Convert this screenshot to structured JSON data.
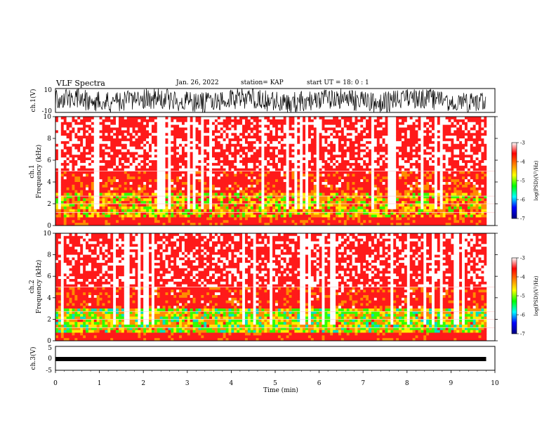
{
  "header": {
    "title": "VLF Spectra",
    "date": "Jan. 26, 2022",
    "station": "station= KAP",
    "start_ut": "start  UT =   18: 0  : 1"
  },
  "chart_data": [
    {
      "type": "line",
      "panel": "ch1-waveform",
      "ylabel": "ch.1(V)",
      "ylim": [
        -10,
        10
      ],
      "yticks": [
        "10",
        "-10"
      ],
      "xlim": [
        0,
        10
      ],
      "note_color": "#000000"
    },
    {
      "type": "heatmap",
      "panel": "ch1-spectrogram",
      "ylabel_line1": "ch.1",
      "ylabel_line2": "Frequency  (kHz)",
      "ylim": [
        0,
        10
      ],
      "yticks": [
        "0",
        "2",
        "4",
        "6",
        "8",
        "10"
      ],
      "xlim": [
        0,
        10
      ],
      "colorbar": {
        "label": "log(PSD)(V²/Hz)",
        "range": [
          -7,
          -3
        ],
        "ticks": [
          "-3",
          "-4",
          "-5",
          "-6",
          "-7"
        ],
        "colors": [
          "#000080",
          "#0000ff",
          "#00ffff",
          "#00ff00",
          "#ffff00",
          "#ff8000",
          "#ff0000",
          "#ffffff"
        ]
      }
    },
    {
      "type": "heatmap",
      "panel": "ch2-spectrogram",
      "ylabel_line1": "ch.2",
      "ylabel_line2": "Frequency  (kHz)",
      "ylim": [
        0,
        10
      ],
      "yticks": [
        "0",
        "2",
        "4",
        "6",
        "8",
        "10"
      ],
      "xlim": [
        0,
        10
      ],
      "colorbar": {
        "label": "log(PSD)(V²/Hz)",
        "range": [
          -7,
          -3
        ],
        "ticks": [
          "-3",
          "-4",
          "-5",
          "-6",
          "-7"
        ],
        "colors": [
          "#000080",
          "#0000ff",
          "#00ffff",
          "#00ff00",
          "#ffff00",
          "#ff8000",
          "#ff0000",
          "#ffffff"
        ]
      }
    },
    {
      "type": "line",
      "panel": "ch3-waveform",
      "ylabel": "ch.3(V)",
      "ylim": [
        -5,
        5
      ],
      "yticks": [
        "5",
        "0",
        "-5"
      ],
      "xlim": [
        0,
        10
      ],
      "xlabel": "Time  (min)",
      "xticks": [
        "0",
        "1",
        "2",
        "3",
        "4",
        "5",
        "6",
        "7",
        "8",
        "9",
        "10"
      ],
      "data_end_min": 9.8
    }
  ]
}
